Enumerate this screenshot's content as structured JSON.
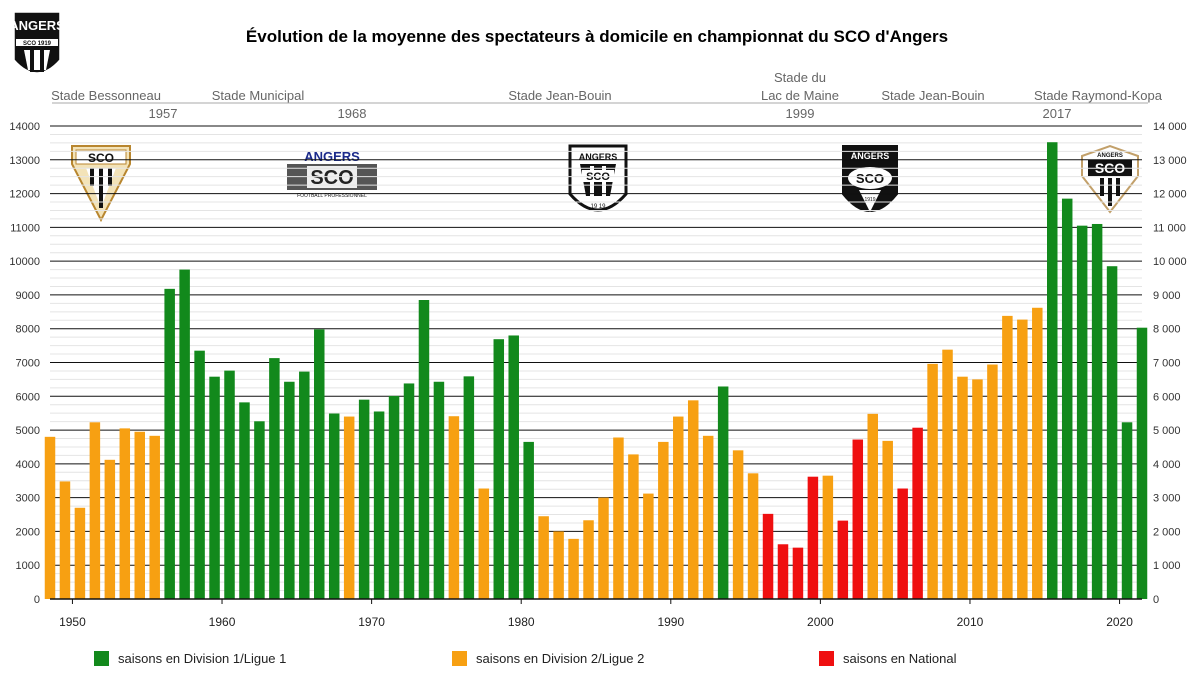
{
  "chart_data": {
    "type": "bar",
    "title": "Évolution de la moyenne des spectateurs à domicile en championnat du SCO d'Angers",
    "xlabel": "",
    "ylabel": "",
    "xlim": [
      1948.5,
      2021.5
    ],
    "ylim": [
      0,
      14000
    ],
    "grid": true,
    "x_ticks": [
      "1950",
      "1960",
      "1970",
      "1980",
      "1990",
      "2000",
      "2010",
      "2020"
    ],
    "y_ticks_left": [
      "0",
      "1000",
      "2000",
      "3000",
      "4000",
      "5000",
      "6000",
      "7000",
      "8000",
      "9000",
      "10000",
      "11000",
      "12000",
      "13000",
      "14000"
    ],
    "y_ticks_right": [
      "0",
      "1 000",
      "2 000",
      "3 000",
      "4 000",
      "5 000",
      "6 000",
      "7 000",
      "8 000",
      "9 000",
      "10 000",
      "11 000",
      "12 000",
      "13 000",
      "14 000"
    ],
    "colors": {
      "ligue1": "#12891c",
      "ligue2": "#f7a012",
      "national": "#ef0f10"
    },
    "legend": [
      {
        "key": "ligue1",
        "label": "saisons en Division 1/Ligue 1"
      },
      {
        "key": "ligue2",
        "label": "saisons en Division 2/Ligue 2"
      },
      {
        "key": "national",
        "label": "saisons en National"
      }
    ],
    "seasons": [
      {
        "x": 1949,
        "value": 4800,
        "div": "ligue2"
      },
      {
        "x": 1950,
        "value": 3480,
        "div": "ligue2"
      },
      {
        "x": 1951,
        "value": 2700,
        "div": "ligue2"
      },
      {
        "x": 1952,
        "value": 5230,
        "div": "ligue2"
      },
      {
        "x": 1953,
        "value": 4120,
        "div": "ligue2"
      },
      {
        "x": 1954,
        "value": 5050,
        "div": "ligue2"
      },
      {
        "x": 1955,
        "value": 4950,
        "div": "ligue2"
      },
      {
        "x": 1956,
        "value": 4830,
        "div": "ligue2"
      },
      {
        "x": 1957,
        "value": 9180,
        "div": "ligue1"
      },
      {
        "x": 1958,
        "value": 9750,
        "div": "ligue1"
      },
      {
        "x": 1959,
        "value": 7350,
        "div": "ligue1"
      },
      {
        "x": 1960,
        "value": 6580,
        "div": "ligue1"
      },
      {
        "x": 1961,
        "value": 6760,
        "div": "ligue1"
      },
      {
        "x": 1962,
        "value": 5820,
        "div": "ligue1"
      },
      {
        "x": 1963,
        "value": 5260,
        "div": "ligue1"
      },
      {
        "x": 1964,
        "value": 7130,
        "div": "ligue1"
      },
      {
        "x": 1965,
        "value": 6430,
        "div": "ligue1"
      },
      {
        "x": 1966,
        "value": 6730,
        "div": "ligue1"
      },
      {
        "x": 1967,
        "value": 7980,
        "div": "ligue1"
      },
      {
        "x": 1968,
        "value": 5490,
        "div": "ligue1"
      },
      {
        "x": 1969,
        "value": 5400,
        "div": "ligue2"
      },
      {
        "x": 1970,
        "value": 5900,
        "div": "ligue1"
      },
      {
        "x": 1971,
        "value": 5550,
        "div": "ligue1"
      },
      {
        "x": 1972,
        "value": 6010,
        "div": "ligue1"
      },
      {
        "x": 1973,
        "value": 6380,
        "div": "ligue1"
      },
      {
        "x": 1974,
        "value": 8850,
        "div": "ligue1"
      },
      {
        "x": 1975,
        "value": 6430,
        "div": "ligue1"
      },
      {
        "x": 1976,
        "value": 5410,
        "div": "ligue2"
      },
      {
        "x": 1977,
        "value": 6590,
        "div": "ligue1"
      },
      {
        "x": 1978,
        "value": 3270,
        "div": "ligue2"
      },
      {
        "x": 1979,
        "value": 7690,
        "div": "ligue1"
      },
      {
        "x": 1980,
        "value": 7800,
        "div": "ligue1"
      },
      {
        "x": 1981,
        "value": 4650,
        "div": "ligue1"
      },
      {
        "x": 1982,
        "value": 2450,
        "div": "ligue2"
      },
      {
        "x": 1983,
        "value": 2000,
        "div": "ligue2"
      },
      {
        "x": 1984,
        "value": 1780,
        "div": "ligue2"
      },
      {
        "x": 1985,
        "value": 2330,
        "div": "ligue2"
      },
      {
        "x": 1986,
        "value": 3000,
        "div": "ligue2"
      },
      {
        "x": 1987,
        "value": 4780,
        "div": "ligue2"
      },
      {
        "x": 1988,
        "value": 4280,
        "div": "ligue2"
      },
      {
        "x": 1989,
        "value": 3120,
        "div": "ligue2"
      },
      {
        "x": 1990,
        "value": 4650,
        "div": "ligue2"
      },
      {
        "x": 1991,
        "value": 5400,
        "div": "ligue2"
      },
      {
        "x": 1992,
        "value": 5880,
        "div": "ligue2"
      },
      {
        "x": 1993,
        "value": 4830,
        "div": "ligue2"
      },
      {
        "x": 1994,
        "value": 6290,
        "div": "ligue1"
      },
      {
        "x": 1995,
        "value": 4400,
        "div": "ligue2"
      },
      {
        "x": 1996,
        "value": 3720,
        "div": "ligue2"
      },
      {
        "x": 1997,
        "value": 2520,
        "div": "national"
      },
      {
        "x": 1998,
        "value": 1620,
        "div": "national"
      },
      {
        "x": 1999,
        "value": 1520,
        "div": "national"
      },
      {
        "x": 2000,
        "value": 3620,
        "div": "national"
      },
      {
        "x": 2001,
        "value": 3650,
        "div": "ligue2"
      },
      {
        "x": 2002,
        "value": 2320,
        "div": "national"
      },
      {
        "x": 2003,
        "value": 4720,
        "div": "national"
      },
      {
        "x": 2004,
        "value": 5480,
        "div": "ligue2"
      },
      {
        "x": 2005,
        "value": 4680,
        "div": "ligue2"
      },
      {
        "x": 2006,
        "value": 3270,
        "div": "national"
      },
      {
        "x": 2007,
        "value": 5070,
        "div": "national"
      },
      {
        "x": 2008,
        "value": 6960,
        "div": "ligue2"
      },
      {
        "x": 2009,
        "value": 7380,
        "div": "ligue2"
      },
      {
        "x": 2010,
        "value": 6580,
        "div": "ligue2"
      },
      {
        "x": 2011,
        "value": 6500,
        "div": "ligue2"
      },
      {
        "x": 2012,
        "value": 6940,
        "div": "ligue2"
      },
      {
        "x": 2013,
        "value": 8380,
        "div": "ligue2"
      },
      {
        "x": 2014,
        "value": 8270,
        "div": "ligue2"
      },
      {
        "x": 2015,
        "value": 8620,
        "div": "ligue2"
      },
      {
        "x": 2016,
        "value": 13520,
        "div": "ligue1"
      },
      {
        "x": 2017,
        "value": 11850,
        "div": "ligue1"
      },
      {
        "x": 2018,
        "value": 11050,
        "div": "ligue1"
      },
      {
        "x": 2019,
        "value": 11100,
        "div": "ligue1"
      },
      {
        "x": 2020,
        "value": 9850,
        "div": "ligue1"
      },
      {
        "x": 2021,
        "value": 5230,
        "div": "ligue1"
      },
      {
        "x": 2022,
        "value": 8030,
        "div": "ligue1"
      }
    ],
    "stadiums": [
      {
        "name": "Stade Bessonneau",
        "year": "1957"
      },
      {
        "name": "Stade Municipal",
        "year": "1968"
      },
      {
        "name": "Stade Jean-Bouin",
        "year": ""
      },
      {
        "name": "Stade du Lac de Maine",
        "name_lines": [
          "Stade du",
          "Lac de Maine"
        ],
        "year": "1999"
      },
      {
        "name": "Stade Jean-Bouin",
        "year": ""
      },
      {
        "name": "Stade Raymond-Kopa",
        "year": "2017"
      }
    ],
    "logos": [
      {
        "id": "crest-1",
        "text": "SCO"
      },
      {
        "id": "crest-2",
        "text_top": "ANGERS",
        "text_main": "SCO",
        "text_bottom": "FOOTBALL PROFESSIONNEL"
      },
      {
        "id": "crest-3",
        "text_top": "ANGERS",
        "text_main": "SCO",
        "text_bottom": "19 19"
      },
      {
        "id": "crest-4",
        "text_top": "ANGERS",
        "text_main": "SCO",
        "text_bottom": "1919"
      },
      {
        "id": "crest-5",
        "text_top": "ANGERS",
        "text_main": "SCO"
      }
    ],
    "club_logo": {
      "text_top": "ANGERS",
      "text_band": "SCO 1919"
    }
  }
}
